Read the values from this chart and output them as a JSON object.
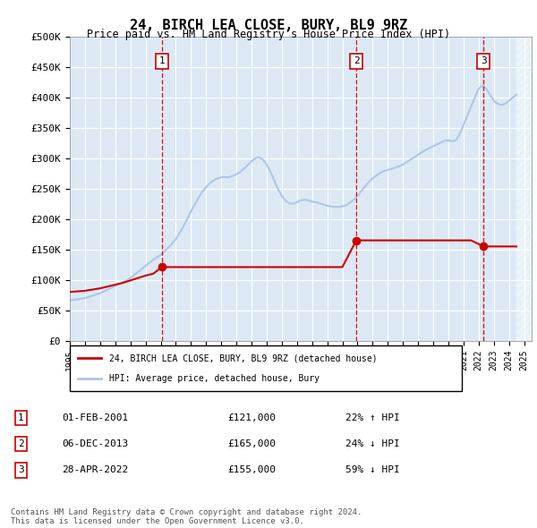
{
  "title": "24, BIRCH LEA CLOSE, BURY, BL9 9RZ",
  "subtitle": "Price paid vs. HM Land Registry's House Price Index (HPI)",
  "ylabel_ticks": [
    "£0",
    "£50K",
    "£100K",
    "£150K",
    "£200K",
    "£250K",
    "£300K",
    "£350K",
    "£400K",
    "£450K",
    "£500K"
  ],
  "ytick_values": [
    0,
    50000,
    100000,
    150000,
    200000,
    250000,
    300000,
    350000,
    400000,
    450000,
    500000
  ],
  "ylim": [
    0,
    500000
  ],
  "xlim_start": 1995.0,
  "xlim_end": 2025.5,
  "hpi_color": "#aec6e8",
  "price_color": "#cc0000",
  "dashed_line_color": "#cc0000",
  "background_color": "#dce9f5",
  "plot_bg_color": "#dce9f5",
  "transactions": [
    {
      "label": "1",
      "date": "01-FEB-2001",
      "year": 2001.08,
      "price": 121000,
      "pct": "22%",
      "direction": "↑"
    },
    {
      "label": "2",
      "date": "06-DEC-2013",
      "year": 2013.92,
      "price": 165000,
      "pct": "24%",
      "direction": "↓"
    },
    {
      "label": "3",
      "date": "28-APR-2022",
      "year": 2022.32,
      "price": 155000,
      "pct": "59%",
      "direction": "↓"
    }
  ],
  "legend_house_label": "24, BIRCH LEA CLOSE, BURY, BL9 9RZ (detached house)",
  "legend_hpi_label": "HPI: Average price, detached house, Bury",
  "footer": "Contains HM Land Registry data © Crown copyright and database right 2024.\nThis data is licensed under the Open Government Licence v3.0.",
  "hpi_data_x": [
    1995.0,
    1995.25,
    1995.5,
    1995.75,
    1996.0,
    1996.25,
    1996.5,
    1996.75,
    1997.0,
    1997.25,
    1997.5,
    1997.75,
    1998.0,
    1998.25,
    1998.5,
    1998.75,
    1999.0,
    1999.25,
    1999.5,
    1999.75,
    2000.0,
    2000.25,
    2000.5,
    2000.75,
    2001.0,
    2001.25,
    2001.5,
    2001.75,
    2002.0,
    2002.25,
    2002.5,
    2002.75,
    2003.0,
    2003.25,
    2003.5,
    2003.75,
    2004.0,
    2004.25,
    2004.5,
    2004.75,
    2005.0,
    2005.25,
    2005.5,
    2005.75,
    2006.0,
    2006.25,
    2006.5,
    2006.75,
    2007.0,
    2007.25,
    2007.5,
    2007.75,
    2008.0,
    2008.25,
    2008.5,
    2008.75,
    2009.0,
    2009.25,
    2009.5,
    2009.75,
    2010.0,
    2010.25,
    2010.5,
    2010.75,
    2011.0,
    2011.25,
    2011.5,
    2011.75,
    2012.0,
    2012.25,
    2012.5,
    2012.75,
    2013.0,
    2013.25,
    2013.5,
    2013.75,
    2014.0,
    2014.25,
    2014.5,
    2014.75,
    2015.0,
    2015.25,
    2015.5,
    2015.75,
    2016.0,
    2016.25,
    2016.5,
    2016.75,
    2017.0,
    2017.25,
    2017.5,
    2017.75,
    2018.0,
    2018.25,
    2018.5,
    2018.75,
    2019.0,
    2019.25,
    2019.5,
    2019.75,
    2020.0,
    2020.25,
    2020.5,
    2020.75,
    2021.0,
    2021.25,
    2021.5,
    2021.75,
    2022.0,
    2022.25,
    2022.5,
    2022.75,
    2023.0,
    2023.25,
    2023.5,
    2023.75,
    2024.0,
    2024.25,
    2024.5
  ],
  "hpi_data_y": [
    66000,
    67000,
    68000,
    69000,
    70000,
    72000,
    74000,
    76000,
    78000,
    81000,
    84000,
    87000,
    90000,
    93000,
    96000,
    99000,
    103000,
    108000,
    113000,
    118000,
    123000,
    128000,
    133000,
    137000,
    141000,
    147000,
    153000,
    160000,
    167000,
    177000,
    188000,
    200000,
    213000,
    224000,
    235000,
    245000,
    253000,
    259000,
    264000,
    267000,
    269000,
    269000,
    269000,
    271000,
    274000,
    278000,
    283000,
    289000,
    295000,
    300000,
    302000,
    298000,
    290000,
    278000,
    264000,
    250000,
    238000,
    230000,
    226000,
    225000,
    228000,
    231000,
    232000,
    231000,
    229000,
    228000,
    226000,
    224000,
    222000,
    221000,
    220000,
    220000,
    221000,
    223000,
    227000,
    232000,
    238000,
    246000,
    254000,
    261000,
    267000,
    272000,
    276000,
    279000,
    281000,
    283000,
    285000,
    287000,
    290000,
    294000,
    298000,
    302000,
    306000,
    310000,
    314000,
    317000,
    320000,
    323000,
    326000,
    329000,
    330000,
    328000,
    330000,
    340000,
    355000,
    370000,
    385000,
    400000,
    415000,
    420000,
    415000,
    405000,
    395000,
    390000,
    388000,
    390000,
    395000,
    400000,
    405000
  ],
  "price_data_x": [
    1995.0,
    1995.5,
    1996.0,
    1996.5,
    1997.0,
    1997.5,
    1998.0,
    1998.5,
    1999.0,
    1999.5,
    2000.0,
    2000.5,
    2001.08,
    2001.5,
    2002.0,
    2002.5,
    2003.0,
    2003.5,
    2004.0,
    2004.5,
    2005.0,
    2005.5,
    2006.0,
    2006.5,
    2007.0,
    2007.5,
    2008.0,
    2008.5,
    2009.0,
    2009.5,
    2010.0,
    2010.5,
    2011.0,
    2011.5,
    2012.0,
    2012.5,
    2013.0,
    2013.92,
    2014.0,
    2014.5,
    2015.0,
    2015.5,
    2016.0,
    2016.5,
    2017.0,
    2017.5,
    2018.0,
    2018.5,
    2019.0,
    2019.5,
    2020.0,
    2020.5,
    2021.0,
    2021.5,
    2022.32,
    2022.5,
    2023.0,
    2023.5,
    2024.0,
    2024.5
  ],
  "price_data_y": [
    80000,
    81000,
    82000,
    84000,
    86000,
    89000,
    92000,
    95000,
    99000,
    103000,
    107000,
    110000,
    121000,
    121000,
    121000,
    121000,
    121000,
    121000,
    121000,
    121000,
    121000,
    121000,
    121000,
    121000,
    121000,
    121000,
    121000,
    121000,
    121000,
    121000,
    121000,
    121000,
    121000,
    121000,
    121000,
    121000,
    121000,
    165000,
    165000,
    165000,
    165000,
    165000,
    165000,
    165000,
    165000,
    165000,
    165000,
    165000,
    165000,
    165000,
    165000,
    165000,
    165000,
    165000,
    155000,
    155000,
    155000,
    155000,
    155000,
    155000
  ]
}
